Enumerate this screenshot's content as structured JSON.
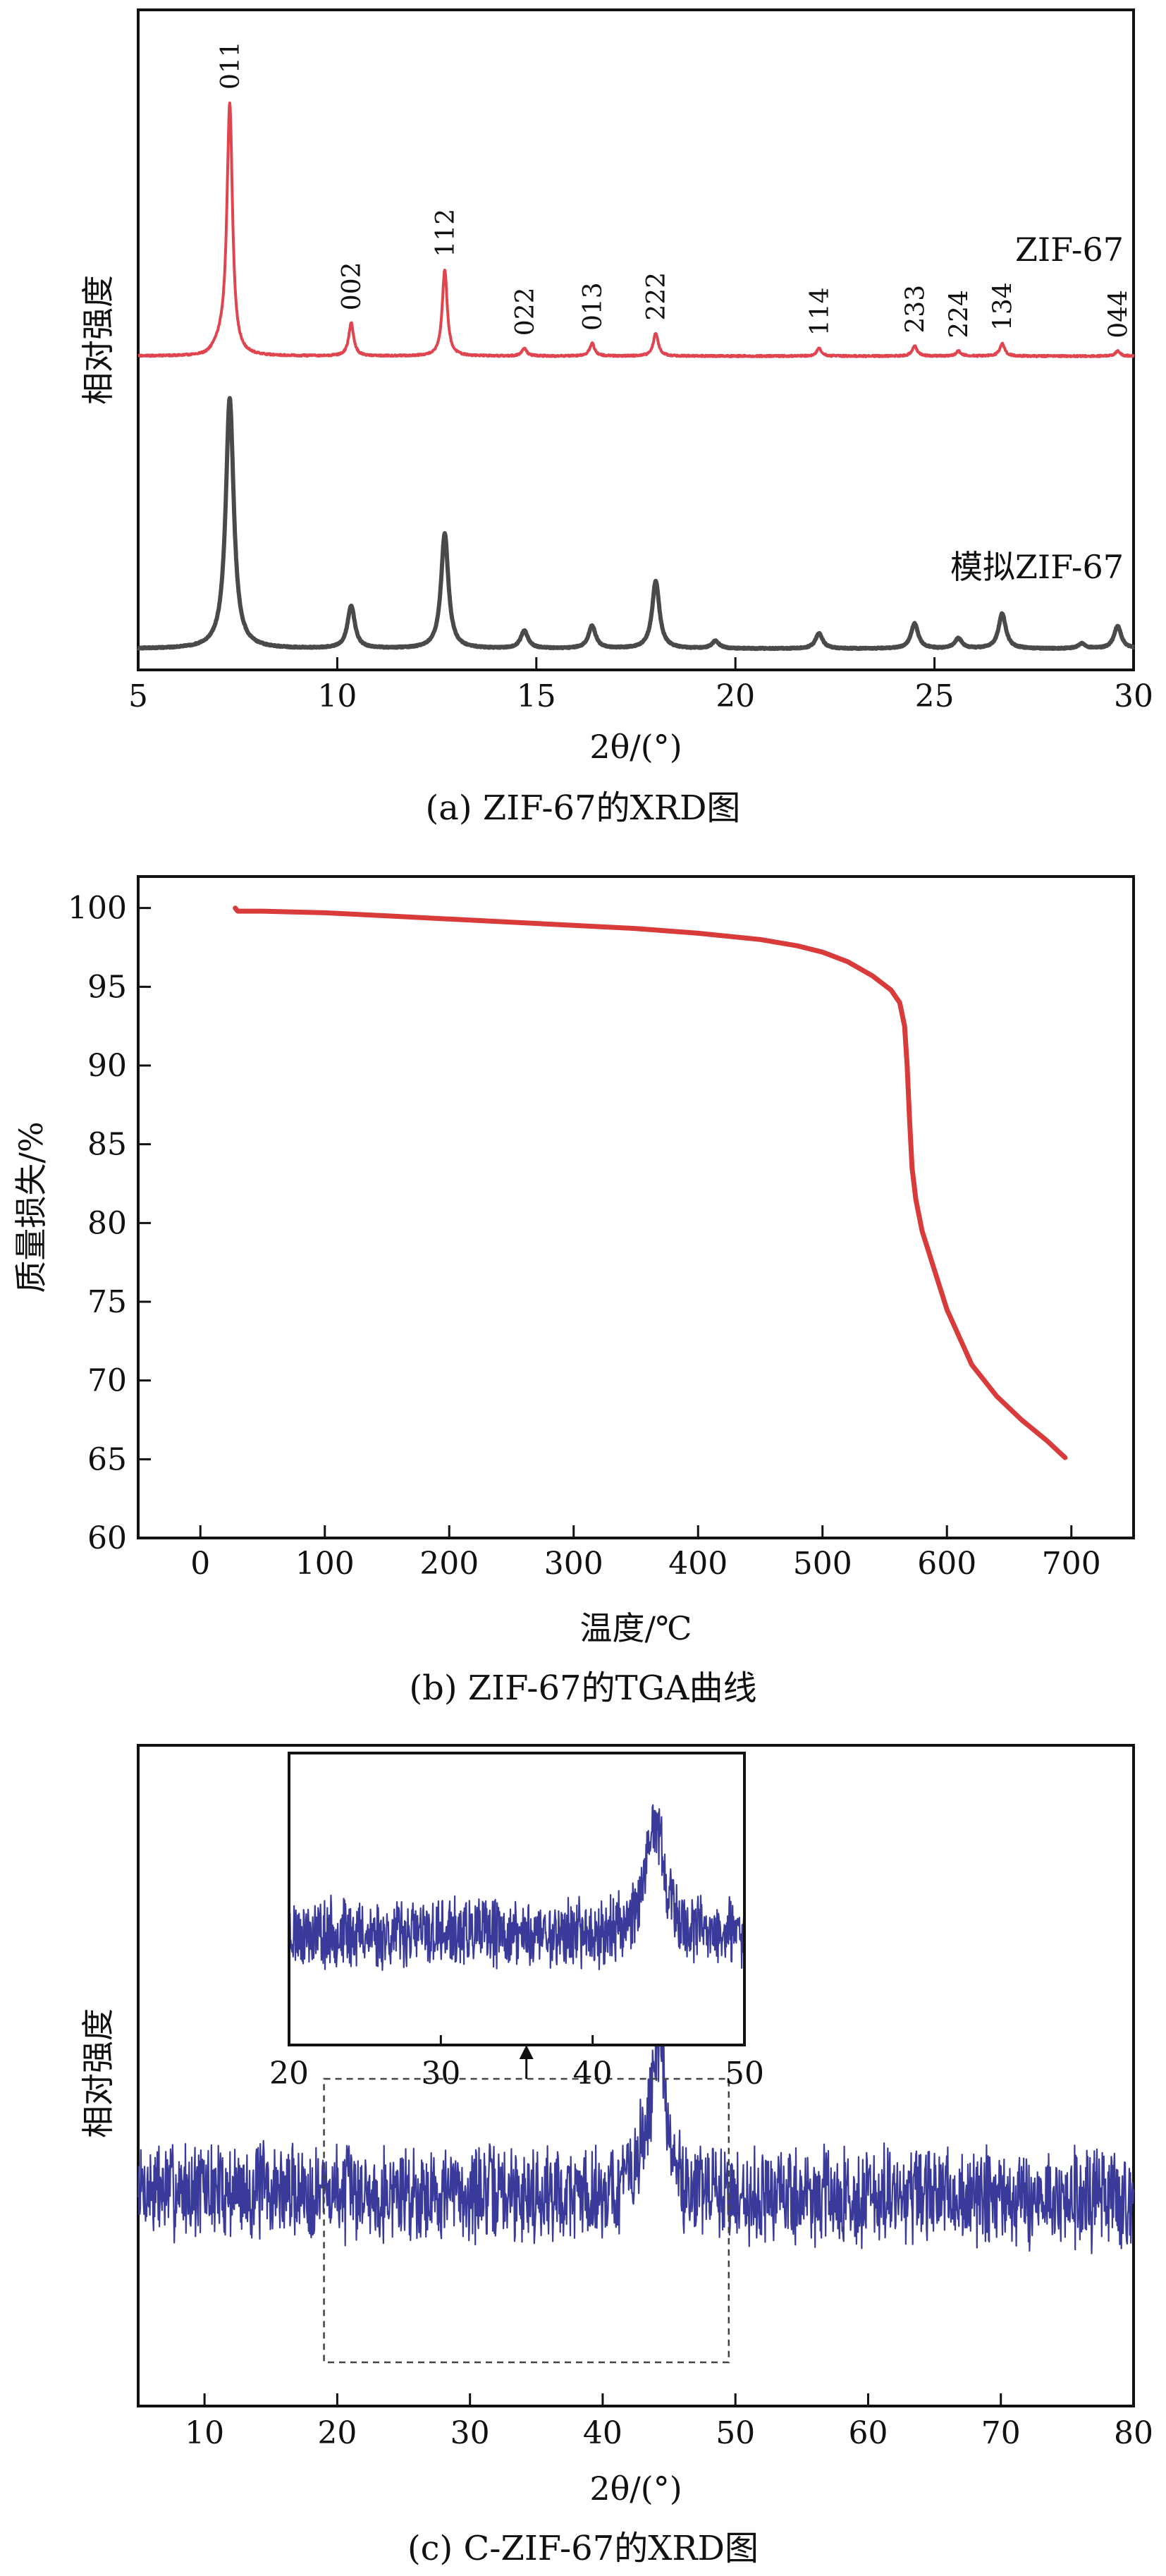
{
  "chart_data": [
    {
      "panel": "a",
      "type": "line",
      "caption": "(a) ZIF-67的XRD图",
      "xlabel": "2θ/(°)",
      "ylabel": "相对强度",
      "xlim": [
        5,
        30
      ],
      "xticks": [
        5,
        10,
        15,
        20,
        25,
        30
      ],
      "yticks_shown": false,
      "series": [
        {
          "name": "ZIF-67",
          "color": "#e0454f",
          "baseline": 1.0,
          "peaks": [
            {
              "x": 7.3,
              "h": 1.0,
              "label": "011"
            },
            {
              "x": 10.35,
              "h": 0.13,
              "label": "002"
            },
            {
              "x": 12.7,
              "h": 0.34,
              "label": "112"
            },
            {
              "x": 14.7,
              "h": 0.03,
              "label": "022"
            },
            {
              "x": 16.4,
              "h": 0.05,
              "label": "013"
            },
            {
              "x": 18.0,
              "h": 0.09,
              "label": "222"
            },
            {
              "x": 22.1,
              "h": 0.03,
              "label": "114"
            },
            {
              "x": 24.5,
              "h": 0.04,
              "label": "233"
            },
            {
              "x": 25.6,
              "h": 0.02,
              "label": "224"
            },
            {
              "x": 26.7,
              "h": 0.05,
              "label": "134"
            },
            {
              "x": 29.6,
              "h": 0.02,
              "label": "044"
            }
          ]
        },
        {
          "name": "模拟ZIF-67",
          "color": "#4a4a4a",
          "baseline": 0.0,
          "peaks": [
            {
              "x": 7.3,
              "h": 1.0
            },
            {
              "x": 10.35,
              "h": 0.17
            },
            {
              "x": 12.7,
              "h": 0.46
            },
            {
              "x": 14.7,
              "h": 0.07
            },
            {
              "x": 16.4,
              "h": 0.09
            },
            {
              "x": 18.0,
              "h": 0.27
            },
            {
              "x": 19.5,
              "h": 0.03
            },
            {
              "x": 22.1,
              "h": 0.06
            },
            {
              "x": 24.5,
              "h": 0.1
            },
            {
              "x": 25.6,
              "h": 0.04
            },
            {
              "x": 26.7,
              "h": 0.14
            },
            {
              "x": 28.7,
              "h": 0.02
            },
            {
              "x": 29.6,
              "h": 0.09
            }
          ]
        }
      ]
    },
    {
      "panel": "b",
      "type": "line",
      "caption": "(b) ZIF-67的TGA曲线",
      "xlabel": "温度/℃",
      "ylabel": "质量损失/%",
      "xlim": [
        -50,
        750
      ],
      "ylim": [
        60,
        102
      ],
      "xticks": [
        0,
        100,
        200,
        300,
        400,
        500,
        600,
        700
      ],
      "yticks": [
        60,
        65,
        70,
        75,
        80,
        85,
        90,
        95,
        100
      ],
      "series": [
        {
          "name": "",
          "color": "#d93a3a",
          "x": [
            28,
            30,
            50,
            100,
            150,
            200,
            250,
            300,
            350,
            400,
            450,
            480,
            500,
            520,
            540,
            555,
            562,
            566,
            568,
            570,
            572,
            575,
            580,
            590,
            600,
            620,
            640,
            660,
            680,
            695
          ],
          "y": [
            100.0,
            99.8,
            99.8,
            99.7,
            99.5,
            99.3,
            99.1,
            98.9,
            98.7,
            98.4,
            98.0,
            97.6,
            97.2,
            96.6,
            95.7,
            94.8,
            94.0,
            92.5,
            90.0,
            86.5,
            83.5,
            81.5,
            79.5,
            77.0,
            74.5,
            71.0,
            69.0,
            67.5,
            66.2,
            65.1
          ]
        }
      ]
    },
    {
      "panel": "c",
      "type": "line",
      "caption": "(c) C-ZIF-67的XRD图",
      "xlabel": "2θ/(°)",
      "ylabel": "相对强度",
      "xlim": [
        5,
        80
      ],
      "xticks": [
        10,
        20,
        30,
        40,
        50,
        60,
        70,
        80
      ],
      "yticks_shown": false,
      "highlight_range": [
        19,
        49.5
      ],
      "inset": {
        "xlim": [
          20,
          50
        ],
        "xticks": [
          20,
          30,
          40,
          50
        ]
      },
      "series": [
        {
          "name": "",
          "color": "#3a3a9a",
          "noise_level": 1.0,
          "peaks": [
            {
              "x": 44.2,
              "h": 2.6,
              "w": 0.6
            }
          ]
        }
      ]
    }
  ]
}
